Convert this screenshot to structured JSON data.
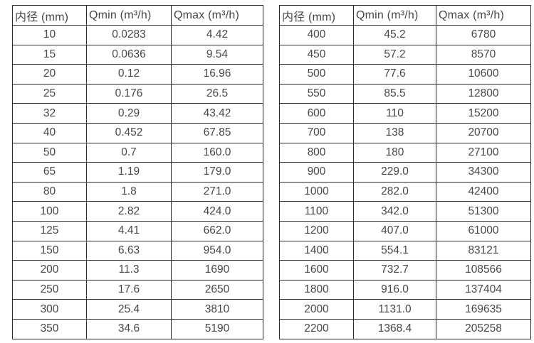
{
  "page": {
    "background_color": "#ffffff",
    "text_color": "#474747",
    "border_color": "#2b2b2b"
  },
  "tables": [
    {
      "name": "flow-spec-small-diameters",
      "headers": [
        "内径 (mm)",
        "Qmin (m³/h)",
        "Qmax (m³/h)"
      ],
      "rows": [
        [
          "10",
          "0.0283",
          "4.42"
        ],
        [
          "15",
          "0.0636",
          "9.54"
        ],
        [
          "20",
          "0.12",
          "16.96"
        ],
        [
          "25",
          "0.176",
          "26.5"
        ],
        [
          "32",
          "0.29",
          "43.42"
        ],
        [
          "40",
          "0.452",
          "67.85"
        ],
        [
          "50",
          "0.7",
          "160.0"
        ],
        [
          "65",
          "1.19",
          "179.0"
        ],
        [
          "80",
          "1.8",
          "271.0"
        ],
        [
          "100",
          "2.82",
          "424.0"
        ],
        [
          "125",
          "4.41",
          "662.0"
        ],
        [
          "150",
          "6.63",
          "954.0"
        ],
        [
          "200",
          "11.3",
          "1690"
        ],
        [
          "250",
          "17.6",
          "2650"
        ],
        [
          "300",
          "25.4",
          "3810"
        ],
        [
          "350",
          "34.6",
          "5190"
        ]
      ]
    },
    {
      "name": "flow-spec-large-diameters",
      "headers": [
        "内径 (mm)",
        "Qmin (m³/h)",
        "Qmax (m³/h)"
      ],
      "rows": [
        [
          "400",
          "45.2",
          "6780"
        ],
        [
          "450",
          "57.2",
          "8570"
        ],
        [
          "500",
          "77.6",
          "10600"
        ],
        [
          "550",
          "85.5",
          "12800"
        ],
        [
          "600",
          "110",
          "15200"
        ],
        [
          "700",
          "138",
          "20700"
        ],
        [
          "800",
          "180",
          "27100"
        ],
        [
          "900",
          "229.0",
          "34300"
        ],
        [
          "1000",
          "282.0",
          "42400"
        ],
        [
          "1100",
          "342.0",
          "51300"
        ],
        [
          "1200",
          "407.0",
          "61000"
        ],
        [
          "1400",
          "554.1",
          "83121"
        ],
        [
          "1600",
          "732.7",
          "108566"
        ],
        [
          "1800",
          "916.0",
          "137404"
        ],
        [
          "2000",
          "1131.0",
          "169635"
        ],
        [
          "2200",
          "1368.4",
          "205258"
        ]
      ]
    }
  ]
}
